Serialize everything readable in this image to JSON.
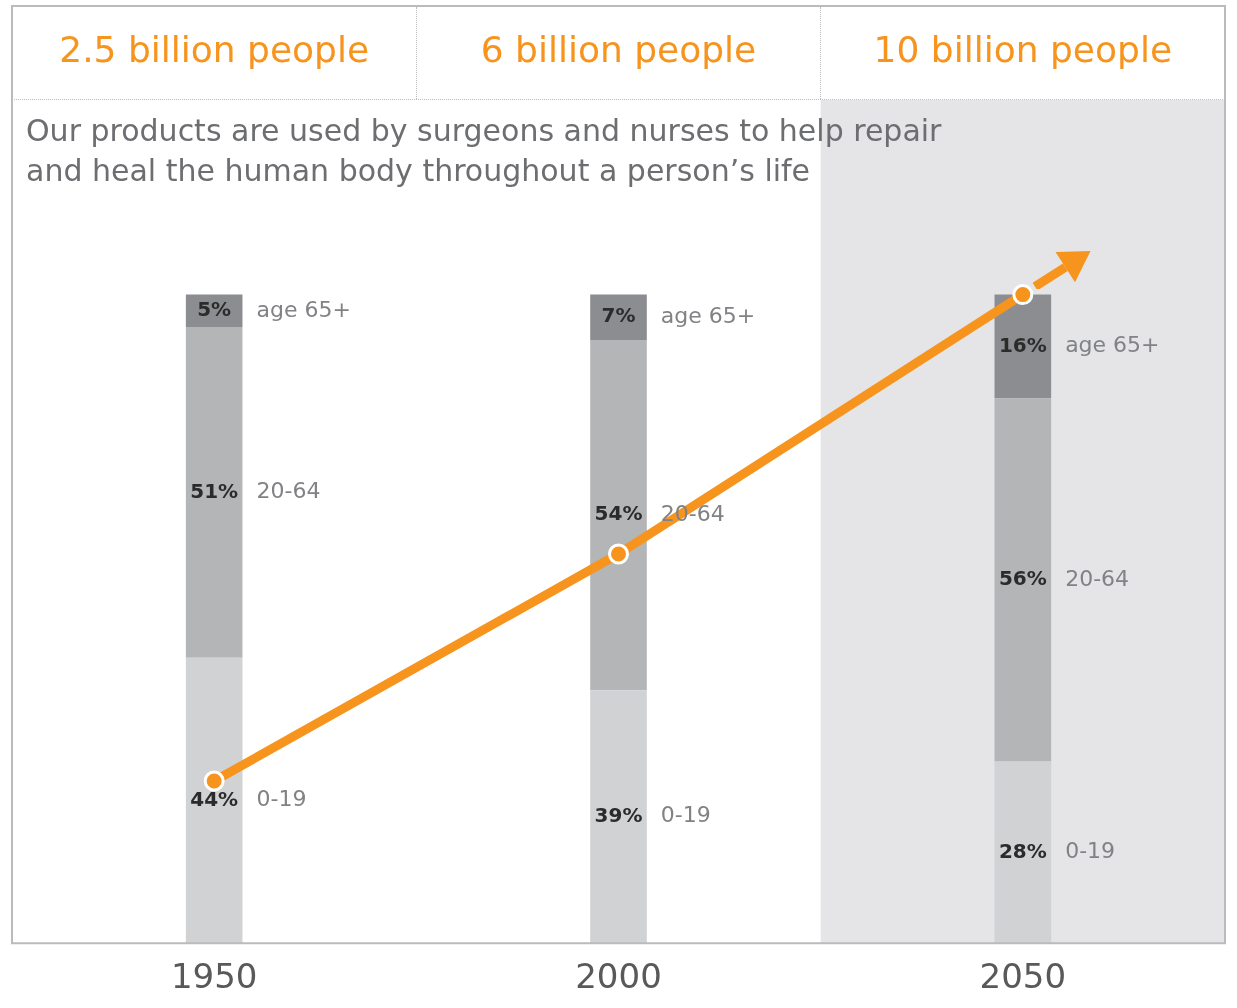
{
  "chart_data": {
    "type": "bar",
    "stacked": true,
    "marker": "circle",
    "title": "Our products are used by surgeons and nurses to help repair and heal the human body throughout a person’s life",
    "categories": [
      "1950",
      "2000",
      "2050"
    ],
    "series": [
      {
        "name": "0-19",
        "color": "#d1d2d4",
        "values": [
          44,
          39,
          28
        ],
        "value_labels": [
          "44%",
          "39%",
          "28%"
        ]
      },
      {
        "name": "20-64",
        "color": "#b4b5b7",
        "values": [
          51,
          54,
          56
        ],
        "value_labels": [
          "51%",
          "54%",
          "56%"
        ]
      },
      {
        "name": "age 65+",
        "color": "#8c8d90",
        "values": [
          5,
          7,
          16
        ],
        "value_labels": [
          "5%",
          "7%",
          "16%"
        ]
      },
      {
        "type": "line",
        "axis": "y2",
        "color": "#f7941d",
        "values": [
          2.5,
          6,
          10
        ],
        "value_labels": [
          "2.5 billion people",
          "6 billion people",
          "10 billion people"
        ]
      }
    ],
    "bands": [
      {
        "axis": "x",
        "from": "2050",
        "to": "2050",
        "color": "#e5e5e8"
      }
    ]
  }
}
